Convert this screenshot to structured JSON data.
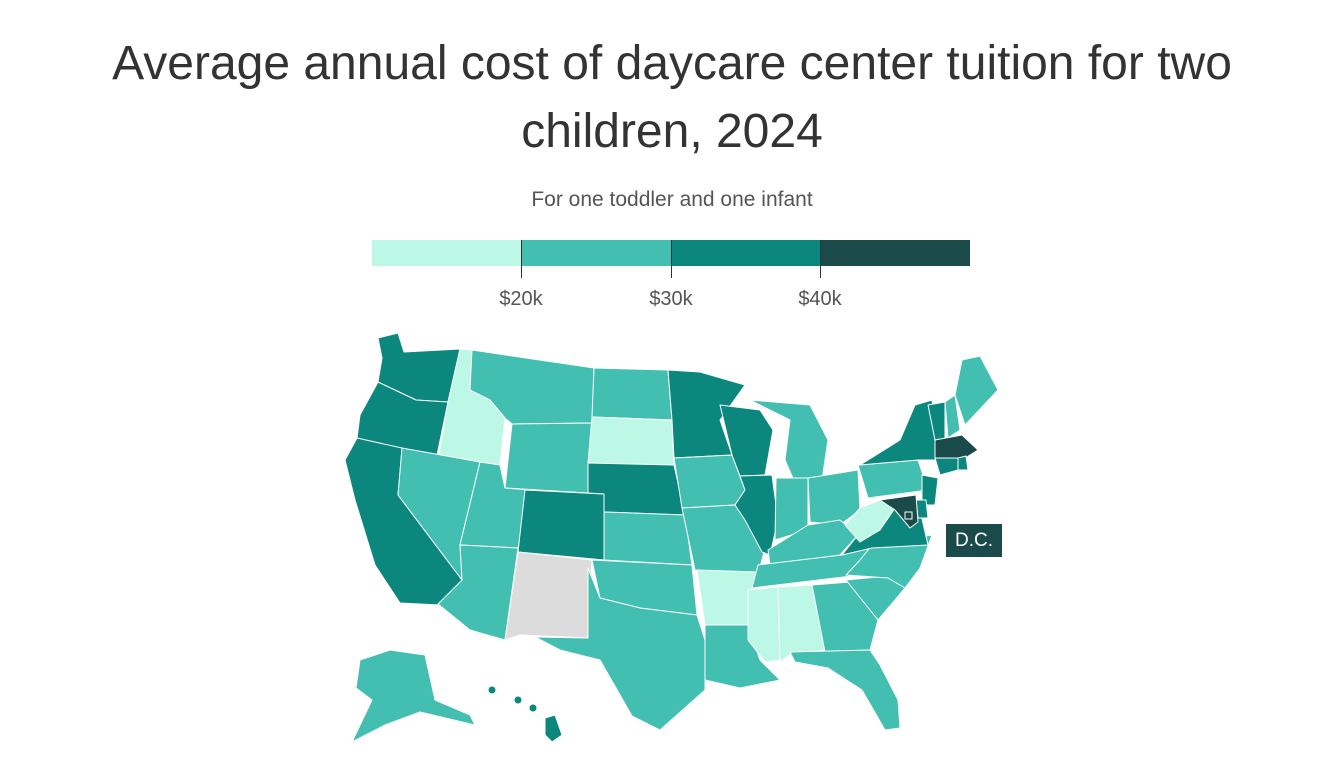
{
  "title_line1": "Average annual cost of daycare center tuition for two",
  "title_line2": "children, 2024",
  "subtitle": "For one toddler and one infant",
  "colors": {
    "bin1": "#bdf7e6",
    "bin2": "#42bfb0",
    "bin3": "#0b877d",
    "bin4": "#1a4a4a",
    "no_data": "#dcdcdc",
    "border": "#ffffff"
  },
  "legend": {
    "ticks": [
      "$20k",
      "$30k",
      "$40k"
    ]
  },
  "dc_label": "D.C.",
  "map_data": {
    "type": "choropleth",
    "bins": [
      {
        "range": "under $20k",
        "color_key": "bin1"
      },
      {
        "range": "$20k–$30k",
        "color_key": "bin2"
      },
      {
        "range": "$30k–$40k",
        "color_key": "bin3"
      },
      {
        "range": "$40k and over",
        "color_key": "bin4"
      }
    ],
    "states": {
      "WA": "bin3",
      "OR": "bin3",
      "CA": "bin3",
      "ID": "bin1",
      "NV": "bin2",
      "MT": "bin2",
      "WY": "bin2",
      "UT": "bin2",
      "AZ": "bin2",
      "CO": "bin3",
      "NM": "no_data",
      "ND": "bin2",
      "SD": "bin1",
      "NE": "bin3",
      "KS": "bin2",
      "OK": "bin2",
      "TX": "bin2",
      "MN": "bin3",
      "IA": "bin2",
      "MO": "bin2",
      "AR": "bin1",
      "LA": "bin2",
      "WI": "bin3",
      "IL": "bin3",
      "MI": "bin2",
      "IN": "bin2",
      "OH": "bin2",
      "KY": "bin2",
      "TN": "bin2",
      "MS": "bin1",
      "AL": "bin1",
      "GA": "bin2",
      "FL": "bin2",
      "SC": "bin2",
      "NC": "bin2",
      "VA": "bin3",
      "WV": "bin1",
      "PA": "bin2",
      "NY": "bin3",
      "VT": "bin3",
      "NH": "bin2",
      "ME": "bin2",
      "MA": "bin4",
      "RI": "bin3",
      "CT": "bin3",
      "NJ": "bin3",
      "DE": "bin3",
      "MD": "bin4",
      "DC": "bin4",
      "AK": "bin2",
      "HI": "bin3"
    }
  }
}
